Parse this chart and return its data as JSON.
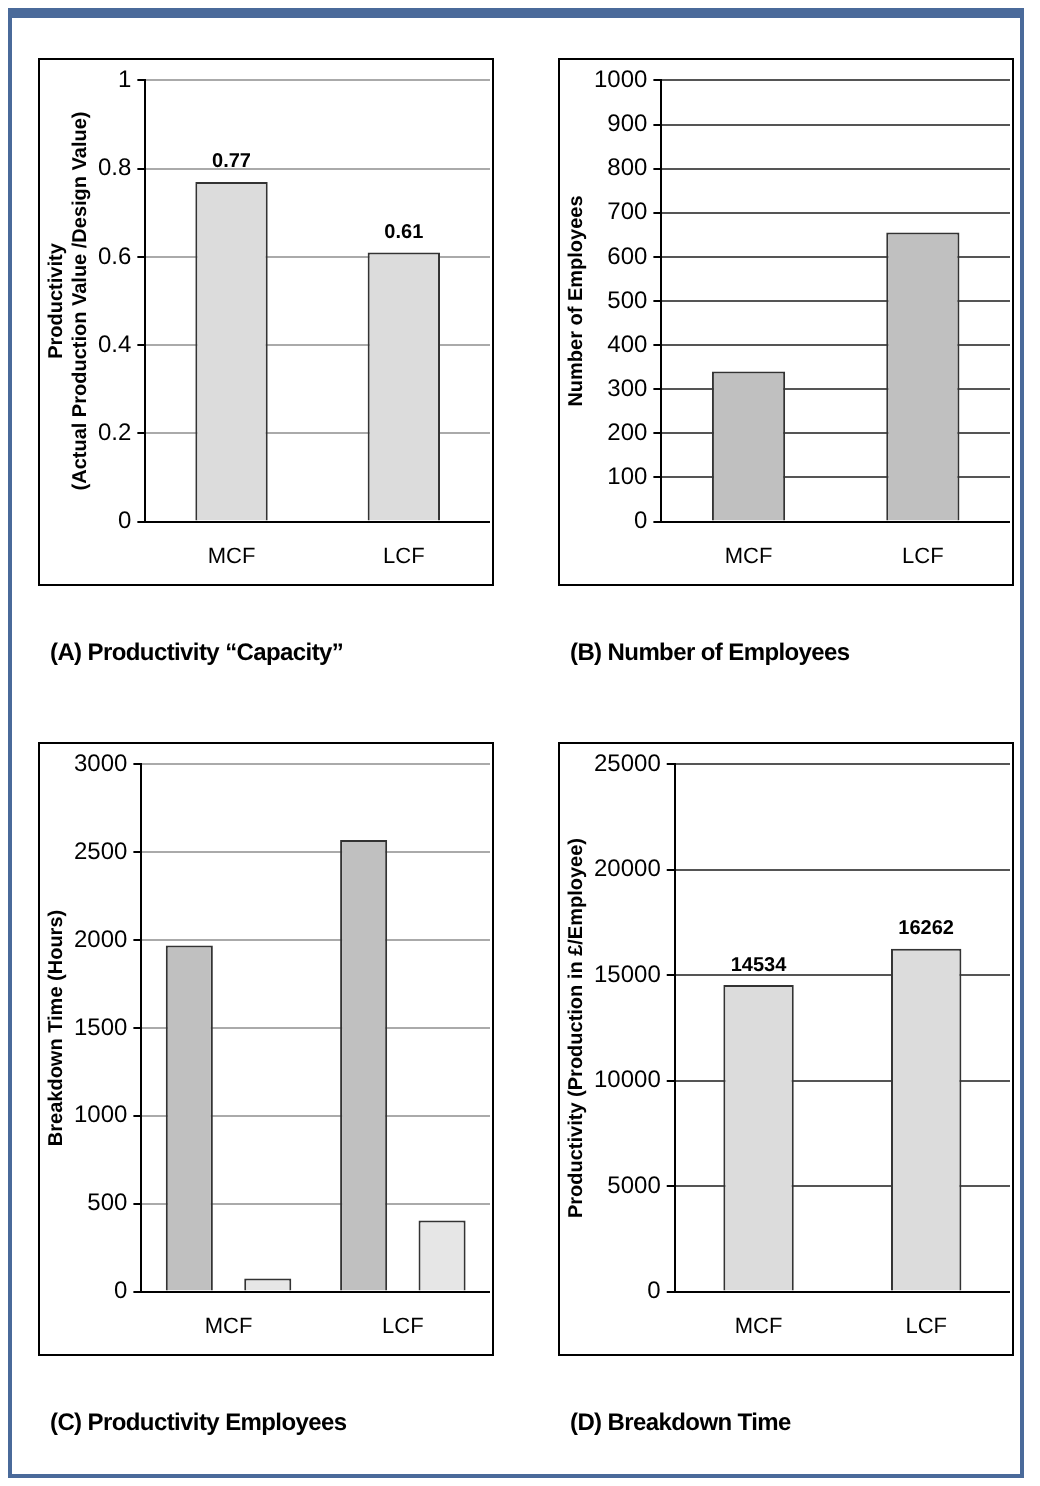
{
  "chart_data": [
    {
      "type": "bar",
      "title": "(A) Productivity “Capacity”",
      "ylabel": "Productivity\n(Actual Production Value /Design Value)",
      "categories": [
        "MCF",
        "LCF"
      ],
      "series": [
        {
          "color": "#dcdcdc",
          "values": [
            0.77,
            0.61
          ]
        }
      ],
      "ylim": [
        0,
        1
      ],
      "yticks": [
        0,
        0.2,
        0.4,
        0.6,
        0.8,
        1
      ],
      "grid": "y",
      "data_labels": true
    },
    {
      "type": "bar",
      "title": "(B) Number of Employees",
      "ylabel": "Number of Employees",
      "categories": [
        "MCF",
        "LCF"
      ],
      "series": [
        {
          "color": "#c0c0c0",
          "values": [
            340,
            655
          ]
        }
      ],
      "ylim": [
        0,
        1000
      ],
      "yticks": [
        0,
        100,
        200,
        300,
        400,
        500,
        600,
        700,
        800,
        900,
        1000
      ],
      "grid": "y"
    },
    {
      "type": "bar",
      "title": "(C) Productivity Employees",
      "ylabel": "Breakdown Time (Hours)",
      "categories": [
        "MCF",
        "LCF"
      ],
      "series": [
        {
          "color": "#c0c0c0",
          "values": [
            1970,
            2570
          ]
        },
        {
          "color": "#e6e6e6",
          "values": [
            75,
            405
          ]
        }
      ],
      "ylim": [
        0,
        3000
      ],
      "yticks": [
        0,
        500,
        1000,
        1500,
        2000,
        2500,
        3000
      ],
      "grid": "y"
    },
    {
      "type": "bar",
      "title": "(D) Breakdown Time",
      "ylabel": "Productivity (Production in £/Employee)",
      "categories": [
        "MCF",
        "LCF"
      ],
      "series": [
        {
          "color": "#dcdcdc",
          "values": [
            14534,
            16262
          ]
        }
      ],
      "ylim": [
        0,
        25000
      ],
      "yticks": [
        0,
        5000,
        10000,
        15000,
        20000,
        25000
      ],
      "grid": "y",
      "data_labels": true
    }
  ]
}
